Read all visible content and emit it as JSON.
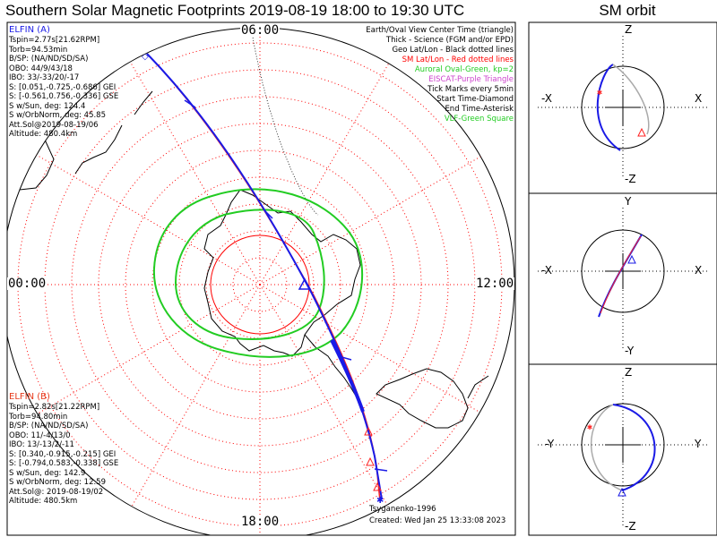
{
  "title": "Southern Solar Magnetic Footprints 2019-08-19 18:00 to 19:30 UTC",
  "sm_title": "SM orbit",
  "mlt_labels": {
    "top": "06:00",
    "left": "00:00",
    "right": "12:00",
    "bottom": "18:00"
  },
  "elfin_a": {
    "header": "ELFIN (A)",
    "color": "#1a1ae6",
    "lines": [
      "Tspin=2.77s[21.62RPM]",
      "Torb=94.53min",
      "B/SP: (NA/ND/SD/SA)",
      "OBO: 44/9/43/18",
      "IBO: 33/-33/20/-17",
      "S: [0.051,-0.725,-0.686] GEI",
      "S: [-0.561,0.756,-0.336] GSE",
      "S w/Sun, deg: 124.4",
      "S w/OrbNorm, deg: 45.85",
      "Att.Sol@2019-08-19/06",
      "Altitude: 480.4km"
    ]
  },
  "elfin_b": {
    "header": "ELFIN (B)",
    "color": "#e6391a",
    "lines": [
      "Tspin=2.82s[21.22RPM]",
      "Torb=94.80min",
      "B/SP: (NA/ND/SD/SA)",
      "OBO: 11/-4/13/0",
      "IBO: 13/-13/2/-11",
      "S: [0.340,-0.915,-0.215] GEI",
      "S: [-0.794,0.583,-0.338] GSE",
      "S w/Sun, deg: 142.9",
      "S w/OrbNorm, deg: 12.59",
      "Att.Sol@: 2019-08-19/02",
      "Altitude: 480.5km"
    ]
  },
  "legend": [
    {
      "text": "Earth/Oval View Center Time (triangle)",
      "color": "#000000"
    },
    {
      "text": "Thick - Science (FGM and/or EPD)",
      "color": "#000000"
    },
    {
      "text": "Geo Lat/Lon - Black dotted lines",
      "color": "#000000"
    },
    {
      "text": "SM Lat/Lon - Red dotted lines",
      "color": "#ff0000"
    },
    {
      "text": "Auroral Oval-Green, kp=2",
      "color": "#22cc22"
    },
    {
      "text": "EISCAT-Purple Triangle",
      "color": "#cc44cc"
    },
    {
      "text": "Tick Marks every 5min",
      "color": "#000000"
    },
    {
      "text": "Start Time-Diamond",
      "color": "#000000"
    },
    {
      "text": "End Time-Asterisk",
      "color": "#000000"
    },
    {
      "text": "VLF-Green Square",
      "color": "#22cc22"
    }
  ],
  "credits": {
    "model": "Tsyganenko-1996",
    "created": "Created: Wed Jan 25 13:33:08 2023"
  },
  "orbit_panels": [
    {
      "top": "Z",
      "bottom": "-Z",
      "left": "-X",
      "right": "X"
    },
    {
      "top": "Y",
      "bottom": "-Y",
      "left": "-X",
      "right": "X"
    },
    {
      "top": "Z",
      "bottom": "-Z",
      "left": "-Y",
      "right": "Y"
    }
  ],
  "colors": {
    "elfin_a": "#1a1ae6",
    "elfin_b": "#e6391a",
    "oval": "#22cc22",
    "sm_grid": "#ff0000",
    "geo_grid": "#000000"
  }
}
